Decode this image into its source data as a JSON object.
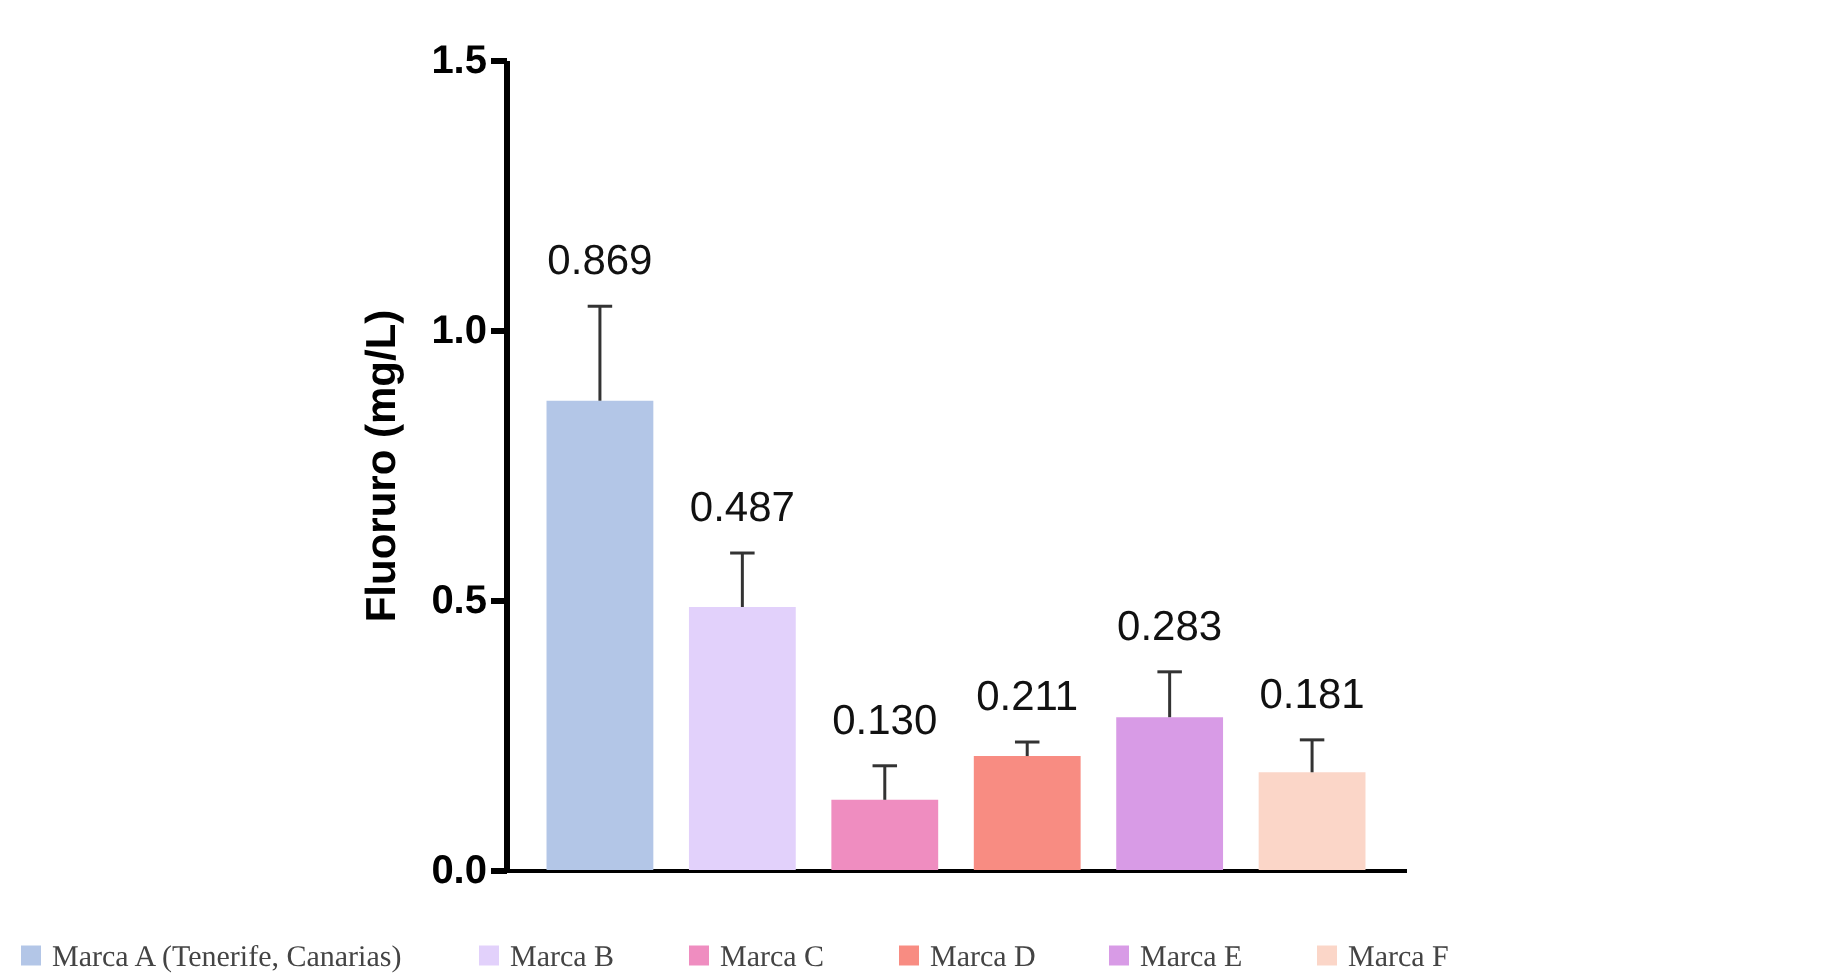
{
  "chart_data": {
    "type": "bar",
    "ylabel": "Fluoruro (mg/L)",
    "categories": [
      null
    ],
    "series": [
      {
        "name": "Marca A (Tenerife, Canarias)",
        "color": "#b3c6e7",
        "values": [
          0.869
        ],
        "errors": [
          0.175
        ],
        "value_labels": [
          "0.869"
        ]
      },
      {
        "name": "Marca B",
        "color": "#e2d1fb",
        "values": [
          0.487
        ],
        "errors": [
          0.1
        ],
        "value_labels": [
          "0.487"
        ]
      },
      {
        "name": "Marca C",
        "color": "#ef8dc0",
        "values": [
          0.13
        ],
        "errors": [
          0.063
        ],
        "value_labels": [
          "0.130"
        ]
      },
      {
        "name": "Marca D",
        "color": "#f88c82",
        "values": [
          0.211
        ],
        "errors": [
          0.026
        ],
        "value_labels": [
          "0.211"
        ]
      },
      {
        "name": "Marca E",
        "color": "#d89be6",
        "values": [
          0.283
        ],
        "errors": [
          0.084
        ],
        "value_labels": [
          "0.283"
        ]
      },
      {
        "name": "Marca F",
        "color": "#fbd6c8",
        "values": [
          0.181
        ],
        "errors": [
          0.06
        ],
        "value_labels": [
          "0.181"
        ]
      }
    ],
    "ylim": [
      0,
      1.5
    ],
    "yticks": [
      {
        "value": 0,
        "label": "0.0"
      },
      0.5,
      {
        "value": 1,
        "label": "1.0"
      },
      1.5
    ],
    "tick_labels": "y",
    "legend": "bottom"
  }
}
